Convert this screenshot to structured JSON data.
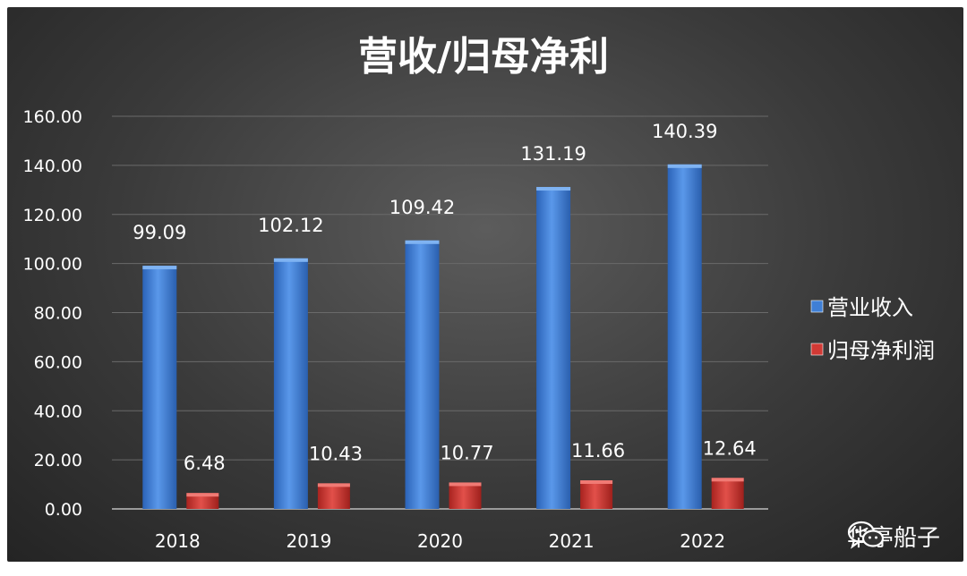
{
  "chart_data": {
    "type": "bar",
    "title": "营收/归母净利",
    "categories": [
      "2018",
      "2019",
      "2020",
      "2021",
      "2022"
    ],
    "ylim": [
      0,
      160
    ],
    "yticks": [
      "0.00",
      "20.00",
      "40.00",
      "60.00",
      "80.00",
      "100.00",
      "120.00",
      "140.00",
      "160.00"
    ],
    "grid": true,
    "legend_position": "right",
    "series": [
      {
        "name": "营业收入",
        "color": "#3f7fd6",
        "values": [
          99.09,
          102.12,
          109.42,
          131.19,
          140.39
        ],
        "labels": [
          "99.09",
          "102.12",
          "109.42",
          "131.19",
          "140.39"
        ]
      },
      {
        "name": "归母净利润",
        "color": "#d23a35",
        "values": [
          6.48,
          10.43,
          10.77,
          11.66,
          12.64
        ],
        "labels": [
          "6.48",
          "10.43",
          "10.77",
          "11.66",
          "12.64"
        ]
      }
    ]
  },
  "watermark": {
    "text": "华亭船子",
    "icon": "wechat-icon"
  }
}
